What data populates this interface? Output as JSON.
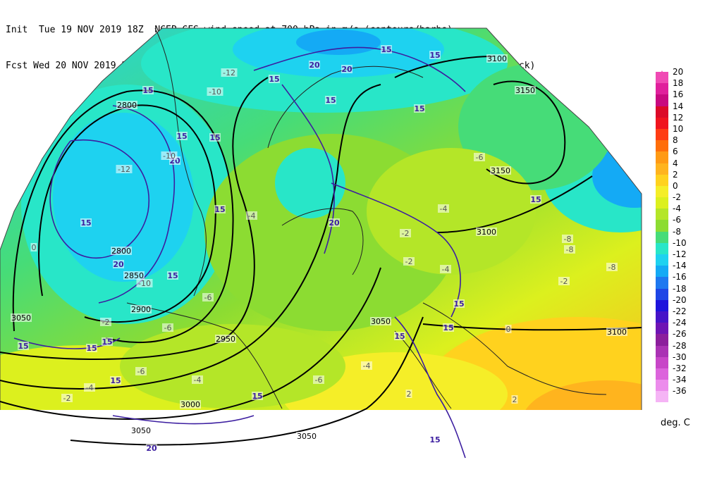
{
  "header": {
    "line1": "Init  Tue 19 NOV 2019 18Z  NCEP GFS wind speed at 700 hPa in m/s (contours/barbs)",
    "line2": "Fcst Wed 20 NOV 2019 21Z  temperature (shaded/dotted) and geopotential height at 700 hPa (black)"
  },
  "legend": {
    "units": "deg. C",
    "items": [
      {
        "label": "20",
        "color": "#f04ab4"
      },
      {
        "label": "18",
        "color": "#e0209c"
      },
      {
        "label": "16",
        "color": "#c80a80"
      },
      {
        "label": "14",
        "color": "#dc0a28"
      },
      {
        "label": "12",
        "color": "#f0141e"
      },
      {
        "label": "10",
        "color": "#ff3c14"
      },
      {
        "label": "8",
        "color": "#ff6e0a"
      },
      {
        "label": "6",
        "color": "#ff9a14"
      },
      {
        "label": "4",
        "color": "#ffb41e"
      },
      {
        "label": "2",
        "color": "#ffd21e"
      },
      {
        "label": "0",
        "color": "#f5ee28"
      },
      {
        "label": "-2",
        "color": "#dcf01e"
      },
      {
        "label": "-4",
        "color": "#b4e628"
      },
      {
        "label": "-6",
        "color": "#8cdc32"
      },
      {
        "label": "-8",
        "color": "#46dc78"
      },
      {
        "label": "-10",
        "color": "#28e6c8"
      },
      {
        "label": "-12",
        "color": "#1ed2f0"
      },
      {
        "label": "-14",
        "color": "#14aaf5"
      },
      {
        "label": "-16",
        "color": "#1e78f0"
      },
      {
        "label": "-18",
        "color": "#1e46e6"
      },
      {
        "label": "-20",
        "color": "#1e14dc"
      },
      {
        "label": "-22",
        "color": "#4614c8"
      },
      {
        "label": "-24",
        "color": "#6e14b4"
      },
      {
        "label": "-26",
        "color": "#8c1e9c"
      },
      {
        "label": "-28",
        "color": "#aa32b4"
      },
      {
        "label": "-30",
        "color": "#c846c8"
      },
      {
        "label": "-32",
        "color": "#dc64dc"
      },
      {
        "label": "-34",
        "color": "#ec8cec"
      },
      {
        "label": "-36",
        "color": "#f5b4f5"
      }
    ]
  },
  "map_labels": {
    "heights": [
      "2800",
      "2800",
      "2850",
      "2900",
      "2950",
      "3000",
      "3050",
      "3050",
      "3100",
      "3100",
      "3100",
      "3150",
      "3150",
      "3050",
      "3050"
    ],
    "wind": [
      "15",
      "15",
      "20",
      "15",
      "20",
      "15",
      "15",
      "15",
      "20",
      "15",
      "20",
      "15",
      "15",
      "15",
      "15",
      "15",
      "20",
      "15",
      "15",
      "15",
      "15",
      "15",
      "15",
      "15",
      "15",
      "15",
      "20"
    ],
    "temps": [
      "-12",
      "-10",
      "-10",
      "-10",
      "-12",
      "-4",
      "-6",
      "-2",
      "-4",
      "-6",
      "-4",
      "-8",
      "-8",
      "-8",
      "-6",
      "-4",
      "-2",
      "0",
      "2",
      "-2",
      "-4",
      "-6",
      "-2",
      "-4",
      "-6",
      "-2",
      "0",
      "2"
    ]
  }
}
